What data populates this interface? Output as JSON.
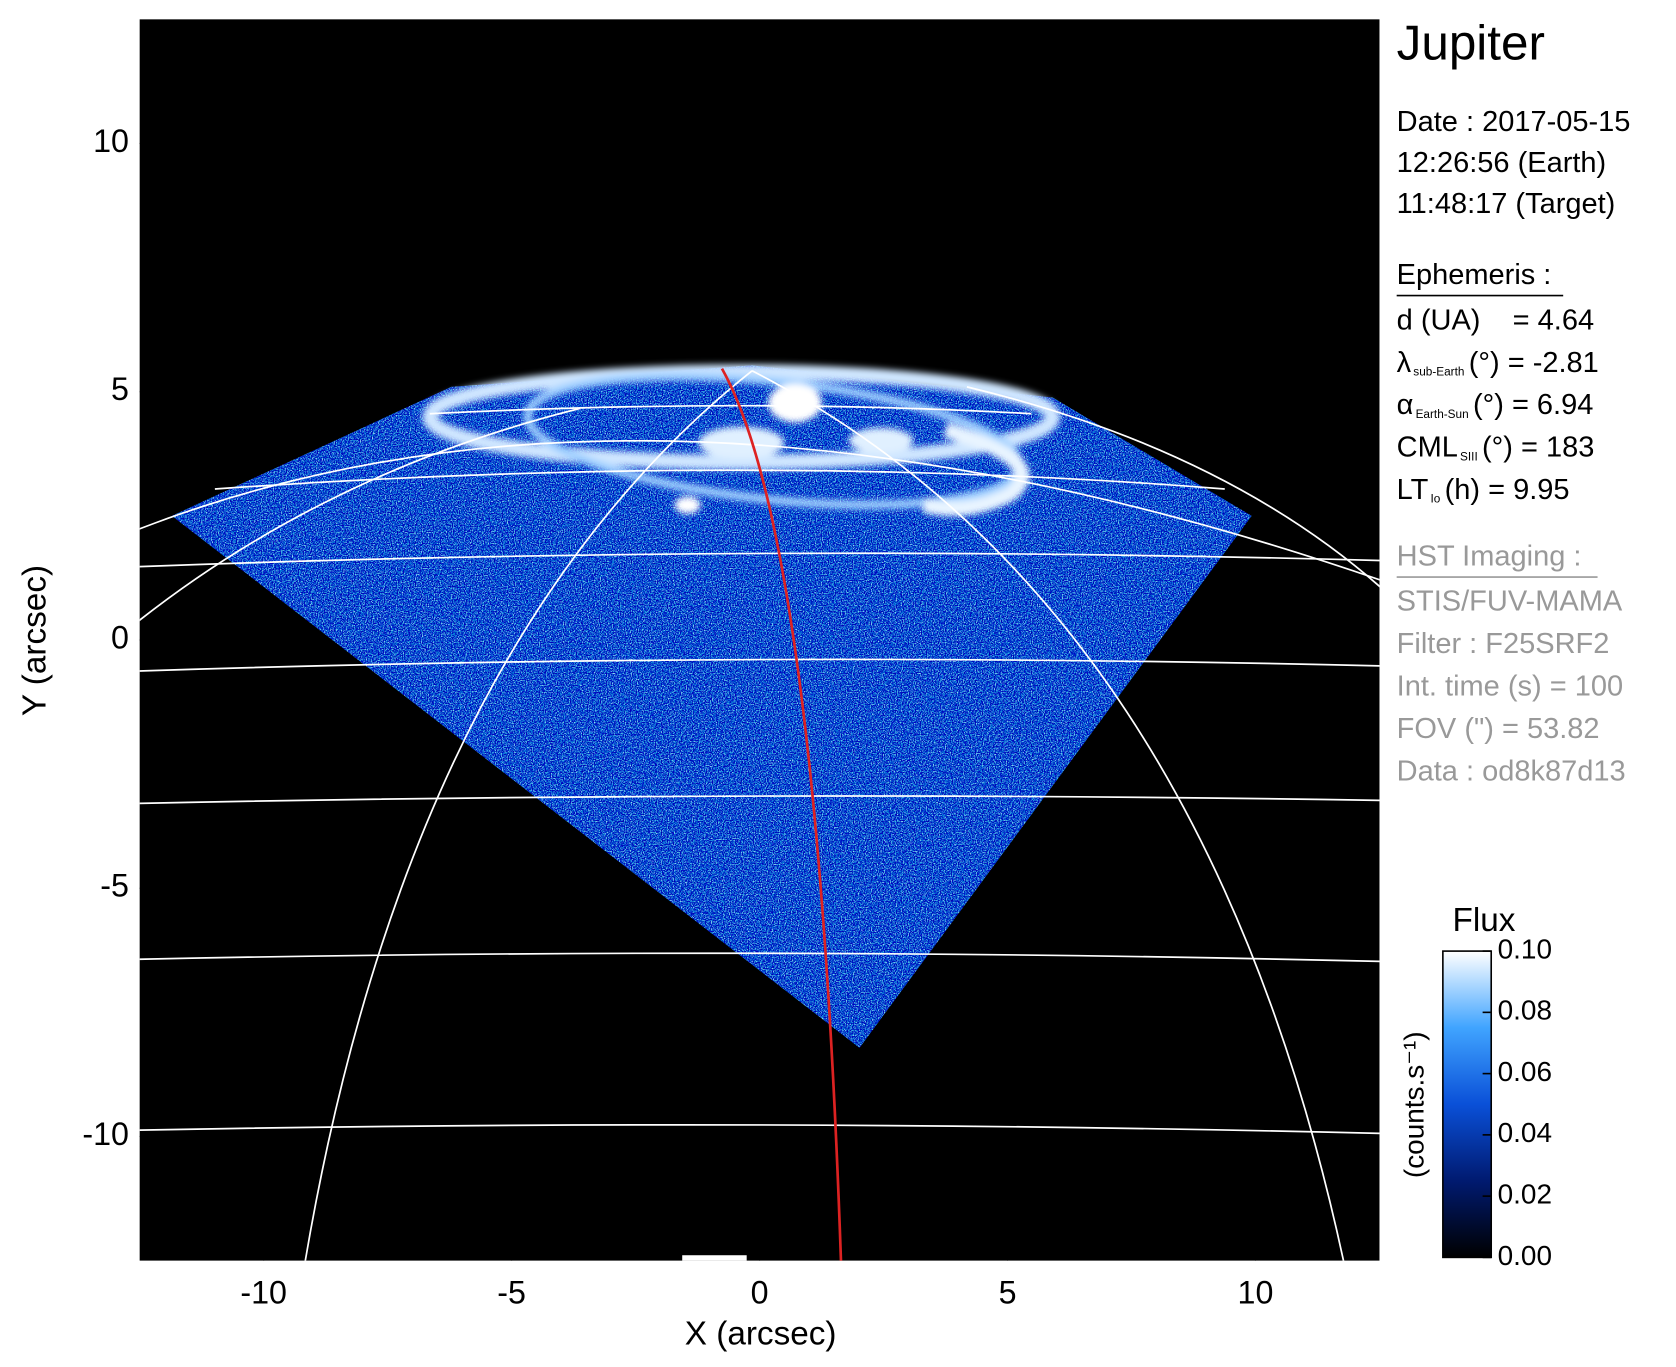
{
  "chart_data": {
    "type": "image",
    "xlabel": "X (arcsec)",
    "ylabel": "Y (arcsec)",
    "xlim": [
      -12.5,
      12.5
    ],
    "ylim": [
      -12.5,
      12.5
    ],
    "xticks": [
      -10,
      -5,
      0,
      5,
      10
    ],
    "yticks": [
      -10,
      -5,
      0,
      5,
      10
    ],
    "colorbar": {
      "title": "Flux",
      "label": "(counts.s⁻¹)",
      "lim": [
        0,
        0.1
      ],
      "ticks": [
        {
          "value": 0,
          "label": "0.00"
        },
        {
          "value": 0.02,
          "label": "0.02"
        },
        {
          "value": 0.04,
          "label": "0.04"
        },
        {
          "value": 0.06,
          "label": "0.06"
        },
        {
          "value": 0.08,
          "label": "0.08"
        },
        {
          "value": 0.1,
          "label": "0.10"
        }
      ],
      "colors": [
        "#000000",
        "#001a70",
        "#0a50d8",
        "#40a4ff",
        "#ffffff"
      ]
    }
  },
  "panel": {
    "title": "Jupiter",
    "date": [
      "Date : 2017-05-15",
      "12:26:56 (Earth)",
      "11:48:17 (Target)"
    ],
    "ephemeris": {
      "heading": "Ephemeris :",
      "rows": [
        {
          "label": "d (UA)",
          "value": "= 4.64"
        },
        {
          "label": "λ",
          "sub": "sub-Earth",
          "value": "(°) = -2.81"
        },
        {
          "label": "α",
          "sub": "Earth-Sun",
          "value": "(°) = 6.94"
        },
        {
          "label": "CML",
          "sub": "SIII",
          "value": "(°) = 183"
        },
        {
          "label": "LT",
          "sub": "Io",
          "value": "(h) = 9.95"
        }
      ]
    },
    "imaging": {
      "heading": "HST Imaging :",
      "lines": [
        "STIS/FUV-MAMA",
        "Filter : F25SRF2",
        "Int. time (s) = 100",
        "FOV (\") = 53.82",
        "Data : od8k87d13"
      ]
    }
  }
}
